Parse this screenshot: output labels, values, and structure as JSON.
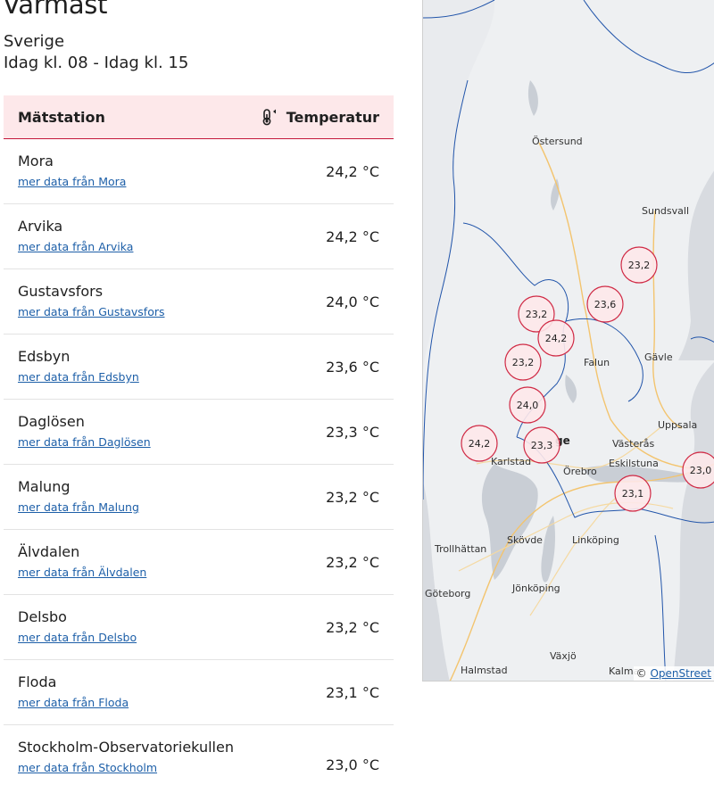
{
  "header": {
    "title": "Varmast",
    "region": "Sverige",
    "timerange": "Idag kl. 08 - Idag kl. 15"
  },
  "table": {
    "col_station": "Mätstation",
    "col_temperature": "Temperatur",
    "rows": [
      {
        "name": "Mora",
        "link": "mer data från Mora",
        "value": "24,2 °C"
      },
      {
        "name": "Arvika",
        "link": "mer data från Arvika",
        "value": "24,2 °C"
      },
      {
        "name": "Gustavsfors",
        "link": "mer data från Gustavsfors",
        "value": "24,0 °C"
      },
      {
        "name": "Edsbyn",
        "link": "mer data från Edsbyn",
        "value": "23,6 °C"
      },
      {
        "name": "Daglösen",
        "link": "mer data från Daglösen",
        "value": "23,3 °C"
      },
      {
        "name": "Malung",
        "link": "mer data från Malung",
        "value": "23,2 °C"
      },
      {
        "name": "Älvdalen",
        "link": "mer data från Älvdalen",
        "value": "23,2 °C"
      },
      {
        "name": "Delsbo",
        "link": "mer data från Delsbo",
        "value": "23,2 °C"
      },
      {
        "name": "Floda",
        "link": "mer data från Floda",
        "value": "23,1 °C"
      },
      {
        "name": "Stockholm-Observatoriekullen",
        "link": "mer data från Stockholm",
        "value": "23,0 °C"
      }
    ]
  },
  "map": {
    "cities": [
      "Östersund",
      "Sundsvall",
      "Falun",
      "Gävle",
      "Uppsala",
      "Västerås",
      "Eskilstuna",
      "Örebro",
      "Karlstad",
      "Trollhättan",
      "Skövde",
      "Linköping",
      "Göteborg",
      "Jönköping",
      "Växjö",
      "Halmstad",
      "Kalmar"
    ],
    "country_label_fragment": "ge",
    "markers": [
      "23,2",
      "23,6",
      "23,2",
      "24,2",
      "23,2",
      "24,0",
      "24,2",
      "23,3",
      "23,1",
      "23,0"
    ],
    "attribution_prefix": "©",
    "attribution_link": "OpenStreet"
  },
  "colors": {
    "header_bg": "#fde8ea",
    "accent": "#c4163a",
    "link": "#1d5fa8",
    "marker_fill": "#fde8ea",
    "marker_stroke": "#d02a45",
    "border_line": "#2255aa"
  }
}
